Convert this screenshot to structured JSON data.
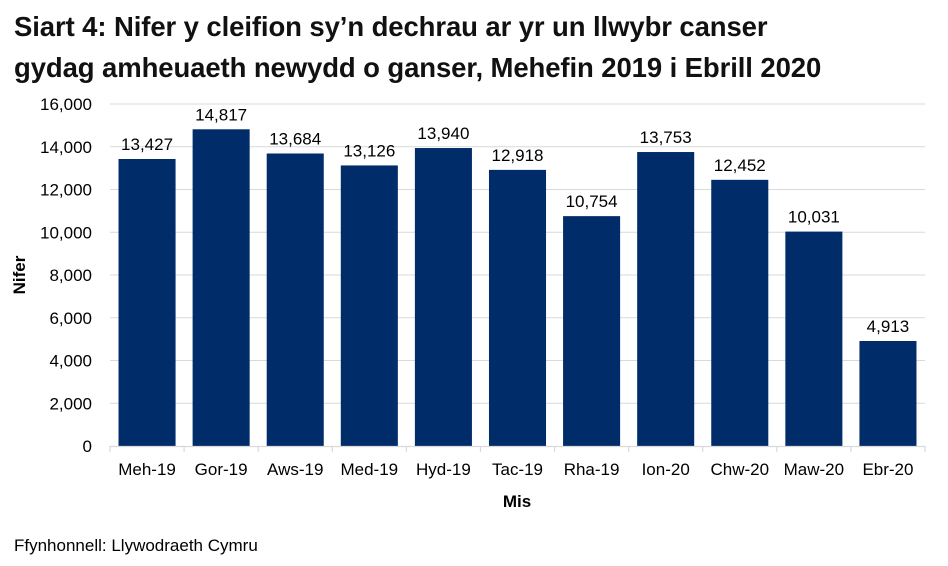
{
  "title": {
    "line1": "Siart 4: Nifer y cleifion sy’n dechrau ar yr un llwybr canser",
    "line2": "gydag amheuaeth newydd o ganser, Mehefin 2019 i Ebrill 2020"
  },
  "source": "Ffynhonnell: Llywodraeth Cymru",
  "colors": {
    "bar": "#002d6a",
    "grid": "#d9d9d9",
    "axis": "#d9d9d9",
    "text": "#000000"
  },
  "chart_data": {
    "type": "bar",
    "title": "Siart 4: Nifer y cleifion sy’n dechrau ar yr un llwybr canser gydag amheuaeth newydd o ganser, Mehefin 2019 i Ebrill 2020",
    "xlabel": "Mis",
    "ylabel": "Nifer",
    "categories": [
      "Meh-19",
      "Gor-19",
      "Aws-19",
      "Med-19",
      "Hyd-19",
      "Tac-19",
      "Rha-19",
      "Ion-20",
      "Chw-20",
      "Maw-20",
      "Ebr-20"
    ],
    "values": [
      13427,
      14817,
      13684,
      13126,
      13940,
      12918,
      10754,
      13753,
      12452,
      10031,
      4913
    ],
    "value_labels": [
      "13,427",
      "14,817",
      "13,684",
      "13,126",
      "13,940",
      "12,918",
      "10,754",
      "13,753",
      "12,452",
      "10,031",
      "4,913"
    ],
    "ylim": [
      0,
      16000
    ],
    "yticks": [
      0,
      2000,
      4000,
      6000,
      8000,
      10000,
      12000,
      14000,
      16000
    ],
    "ytick_labels": [
      "0",
      "2,000",
      "4,000",
      "6,000",
      "8,000",
      "10,000",
      "12,000",
      "14,000",
      "16,000"
    ],
    "grid": true,
    "legend": null,
    "data_labels": true
  }
}
